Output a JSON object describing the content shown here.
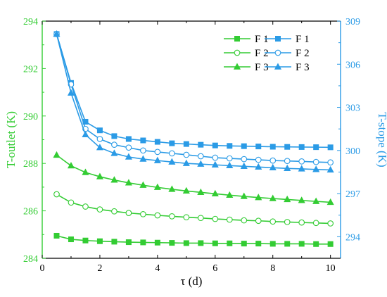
{
  "chart_data": {
    "type": "line",
    "title": "",
    "xlabel": "τ (d)",
    "ylabel_left": "T-outlet (K)",
    "ylabel_right": "T-stope (K)",
    "xlim": [
      0,
      10.35
    ],
    "ylim_left": [
      284,
      294
    ],
    "ylim_right": [
      292.5,
      309
    ],
    "x_ticks": [
      0,
      2,
      4,
      6,
      8,
      10
    ],
    "y_left_ticks": [
      284,
      286,
      288,
      290,
      292,
      294
    ],
    "y_right_ticks": [
      294,
      297,
      300,
      303,
      306,
      309
    ],
    "grid": false,
    "legend_position": "top-right",
    "colors": {
      "left_axis": "#33cc33",
      "right_axis": "#2b9be6"
    },
    "x": [
      0.5,
      1,
      1.5,
      2,
      2.5,
      3,
      3.5,
      4,
      4.5,
      5,
      5.5,
      6,
      6.5,
      7,
      7.5,
      8,
      8.5,
      9,
      9.5,
      10
    ],
    "series": [
      {
        "name": "F 1",
        "axis": "left",
        "marker": "square-filled",
        "color": "#33cc33",
        "values": [
          284.95,
          284.8,
          284.75,
          284.72,
          284.7,
          284.68,
          284.67,
          284.66,
          284.65,
          284.64,
          284.64,
          284.63,
          284.63,
          284.62,
          284.62,
          284.61,
          284.61,
          284.61,
          284.6,
          284.6
        ]
      },
      {
        "name": "F 2",
        "axis": "left",
        "marker": "circle-open",
        "color": "#33cc33",
        "values": [
          286.7,
          286.35,
          286.18,
          286.06,
          285.98,
          285.91,
          285.86,
          285.81,
          285.77,
          285.73,
          285.7,
          285.66,
          285.63,
          285.6,
          285.58,
          285.55,
          285.53,
          285.51,
          285.49,
          285.47
        ]
      },
      {
        "name": "F 3",
        "axis": "left",
        "marker": "triangle-filled",
        "color": "#33cc33",
        "values": [
          288.35,
          287.9,
          287.62,
          287.44,
          287.3,
          287.18,
          287.08,
          286.99,
          286.91,
          286.84,
          286.78,
          286.72,
          286.66,
          286.61,
          286.56,
          286.52,
          286.48,
          286.44,
          286.4,
          286.36
        ]
      },
      {
        "name": "F 1",
        "axis": "right",
        "marker": "square-filled",
        "color": "#2b9be6",
        "values": [
          308.1,
          304.7,
          302.0,
          301.4,
          301.0,
          300.8,
          300.7,
          300.6,
          300.5,
          300.45,
          300.4,
          300.35,
          300.32,
          300.3,
          300.28,
          300.26,
          300.25,
          300.24,
          300.23,
          300.22
        ]
      },
      {
        "name": "F 2",
        "axis": "right",
        "marker": "circle-open",
        "color": "#2b9be6",
        "values": [
          308.1,
          304.6,
          301.5,
          300.8,
          300.4,
          300.2,
          300.0,
          299.9,
          299.8,
          299.7,
          299.6,
          299.5,
          299.45,
          299.4,
          299.35,
          299.3,
          299.27,
          299.24,
          299.2,
          299.17
        ]
      },
      {
        "name": "F 3",
        "axis": "right",
        "marker": "triangle-filled",
        "color": "#2b9be6",
        "values": [
          308.1,
          304.0,
          301.1,
          300.2,
          299.8,
          299.55,
          299.4,
          299.3,
          299.2,
          299.1,
          299.05,
          299.0,
          298.95,
          298.9,
          298.85,
          298.8,
          298.75,
          298.72,
          298.68,
          298.65
        ]
      }
    ]
  }
}
